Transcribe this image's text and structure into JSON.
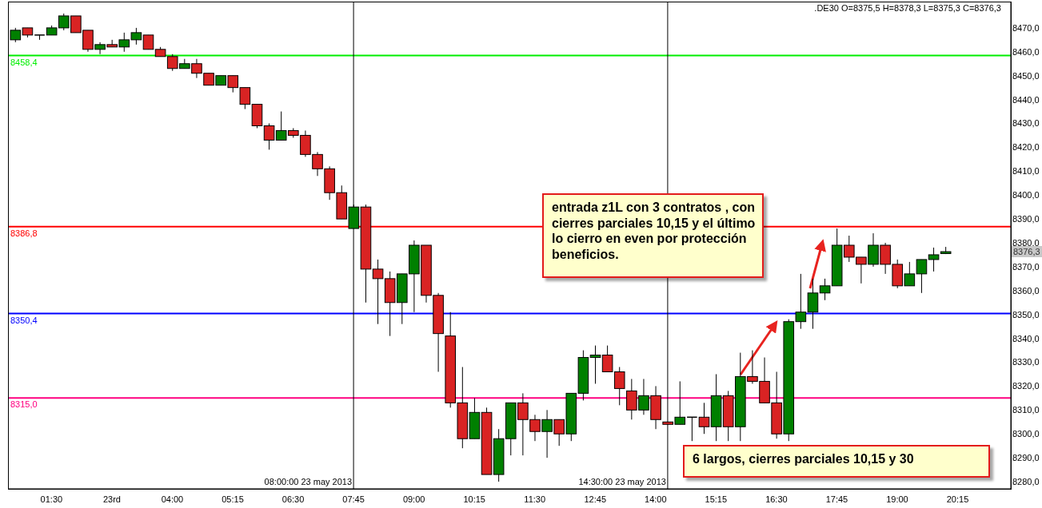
{
  "chart_data": {
    "type": "candlestick",
    "title": ".DE30 O=8375,5 H=8378,3 L=8375,3 C=8376,3",
    "x": [
      "2013-05-23T00:45",
      "2013-05-23T01:00",
      "2013-05-23T01:15",
      "2013-05-23T01:30",
      "2013-05-23T01:45",
      "2013-05-23T02:00",
      "2013-05-23T02:15",
      "2013-05-23T02:30",
      "2013-05-23T02:45",
      "2013-05-23T03:00",
      "2013-05-23T03:15",
      "2013-05-23T03:30",
      "2013-05-23T03:45",
      "2013-05-23T04:00",
      "2013-05-23T04:15",
      "2013-05-23T04:30",
      "2013-05-23T04:45",
      "2013-05-23T05:00",
      "2013-05-23T05:15",
      "2013-05-23T05:30",
      "2013-05-23T05:45",
      "2013-05-23T06:00",
      "2013-05-23T06:15",
      "2013-05-23T06:30",
      "2013-05-23T06:45",
      "2013-05-23T07:00",
      "2013-05-23T07:15",
      "2013-05-23T07:30",
      "2013-05-23T07:45",
      "2013-05-23T08:00",
      "2013-05-23T08:15",
      "2013-05-23T08:30",
      "2013-05-23T08:45",
      "2013-05-23T09:00",
      "2013-05-23T09:15",
      "2013-05-23T09:30",
      "2013-05-23T09:45",
      "2013-05-23T10:00",
      "2013-05-23T10:15",
      "2013-05-23T10:30",
      "2013-05-23T10:45",
      "2013-05-23T11:00",
      "2013-05-23T11:15",
      "2013-05-23T11:30",
      "2013-05-23T11:45",
      "2013-05-23T12:00",
      "2013-05-23T12:15",
      "2013-05-23T12:30",
      "2013-05-23T12:45",
      "2013-05-23T13:00",
      "2013-05-23T13:15",
      "2013-05-23T13:30",
      "2013-05-23T13:45",
      "2013-05-23T14:00",
      "2013-05-23T14:15",
      "2013-05-23T14:30",
      "2013-05-23T14:45",
      "2013-05-23T15:00",
      "2013-05-23T15:15",
      "2013-05-23T15:30",
      "2013-05-23T15:45",
      "2013-05-23T16:00",
      "2013-05-23T16:15",
      "2013-05-23T16:30",
      "2013-05-23T16:45",
      "2013-05-23T17:00",
      "2013-05-23T17:15",
      "2013-05-23T17:30",
      "2013-05-23T17:45",
      "2013-05-23T18:00",
      "2013-05-23T18:15",
      "2013-05-23T18:30",
      "2013-05-23T18:45",
      "2013-05-23T19:00",
      "2013-05-23T19:15",
      "2013-05-23T19:30",
      "2013-05-23T19:45",
      "2013-05-23T20:00"
    ],
    "ohlc": [
      [
        8465,
        8470,
        8464,
        8469
      ],
      [
        8470,
        8470,
        8466,
        8467
      ],
      [
        8467,
        8467,
        8465,
        8467
      ],
      [
        8467,
        8471,
        8467,
        8470
      ],
      [
        8470,
        8476,
        8469,
        8475
      ],
      [
        8475,
        8475,
        8468,
        8468
      ],
      [
        8469,
        8469,
        8460,
        8461
      ],
      [
        8461,
        8464,
        8459,
        8463
      ],
      [
        8463,
        8465,
        8462,
        8462
      ],
      [
        8462,
        8468,
        8460,
        8465
      ],
      [
        8465,
        8470,
        8463,
        8468
      ],
      [
        8467,
        8467,
        8461,
        8461
      ],
      [
        8461,
        8462,
        8458,
        8458
      ],
      [
        8458,
        8459,
        8452,
        8453
      ],
      [
        8453,
        8457,
        8453,
        8455
      ],
      [
        8455,
        8457,
        8449,
        8451
      ],
      [
        8451,
        8451,
        8446,
        8446
      ],
      [
        8446,
        8450,
        8446,
        8450
      ],
      [
        8450,
        8450,
        8443,
        8445
      ],
      [
        8445,
        8445,
        8436,
        8438
      ],
      [
        8438,
        8438,
        8428,
        8429
      ],
      [
        8429,
        8430,
        8419,
        8423
      ],
      [
        8423,
        8435,
        8423,
        8427
      ],
      [
        8427,
        8428,
        8424,
        8425
      ],
      [
        8425,
        8427,
        8416,
        8417
      ],
      [
        8417,
        8418,
        8408,
        8411
      ],
      [
        8411,
        8412,
        8398,
        8401
      ],
      [
        8401,
        8404,
        8390,
        8390
      ],
      [
        8386,
        8396,
        8386,
        8395
      ],
      [
        8395,
        8396,
        8355,
        8369
      ],
      [
        8369,
        8373,
        8346,
        8365
      ],
      [
        8365,
        8368,
        8341,
        8355
      ],
      [
        8355,
        8367,
        8346,
        8367
      ],
      [
        8367,
        8381,
        8351,
        8379
      ],
      [
        8379,
        8379,
        8355,
        8358
      ],
      [
        8358,
        8359,
        8326,
        8342
      ],
      [
        8341,
        8351,
        8311,
        8313
      ],
      [
        8313,
        8328,
        8294,
        8298
      ],
      [
        8298,
        8315,
        8298,
        8309
      ],
      [
        8309,
        8311,
        8283,
        8283
      ],
      [
        8283,
        8302,
        8280,
        8298
      ],
      [
        8298,
        8313,
        8291,
        8313
      ],
      [
        8313,
        8317,
        8291,
        8306
      ],
      [
        8306,
        8308,
        8297,
        8301
      ],
      [
        8301,
        8310,
        8290,
        8306
      ],
      [
        8306,
        8306,
        8295,
        8300
      ],
      [
        8300,
        8317,
        8297,
        8317
      ],
      [
        8317,
        8335,
        8314,
        8332
      ],
      [
        8332,
        8337,
        8321,
        8333
      ],
      [
        8333,
        8337,
        8326,
        8326
      ],
      [
        8326,
        8328,
        8312,
        8319
      ],
      [
        8318,
        8323,
        8306,
        8310
      ],
      [
        8310,
        8323,
        8308,
        8316
      ],
      [
        8316,
        8320,
        8302,
        8306
      ],
      [
        8305,
        8305,
        8304,
        8304
      ],
      [
        8304,
        8322,
        8304,
        8307
      ],
      [
        8307,
        8307,
        8297,
        8307
      ],
      [
        8307,
        8313,
        8300,
        8303
      ],
      [
        8303,
        8325,
        8297,
        8316
      ],
      [
        8316,
        8318,
        8297,
        8303
      ],
      [
        8303,
        8334,
        8297,
        8324
      ],
      [
        8324,
        8335,
        8321,
        8322
      ],
      [
        8322,
        8332,
        8313,
        8313
      ],
      [
        8313,
        8326,
        8298,
        8300
      ],
      [
        8300,
        8348,
        8297,
        8347
      ],
      [
        8347,
        8367,
        8344,
        8351
      ],
      [
        8351,
        8365,
        8344,
        8359
      ],
      [
        8359,
        8365,
        8356,
        8362
      ],
      [
        8362,
        8386,
        8362,
        8379
      ],
      [
        8379,
        8383,
        8372,
        8374
      ],
      [
        8374,
        8374,
        8363,
        8371
      ],
      [
        8371,
        8384,
        8370,
        8379
      ],
      [
        8379,
        8380,
        8367,
        8371
      ],
      [
        8371,
        8373,
        8361,
        8362
      ],
      [
        8362,
        8372,
        8362,
        8367
      ],
      [
        8367,
        8373,
        8359,
        8373
      ],
      [
        8373,
        8378,
        8368,
        8375
      ],
      [
        8375.5,
        8378.3,
        8375.3,
        8376.3
      ]
    ],
    "colors": [
      "#008000",
      "#d92323",
      "#000000",
      "#008000",
      "#008000",
      "#d92323",
      "#d92323",
      "#008000",
      "#d92323",
      "#008000",
      "#008000",
      "#d92323",
      "#d92323",
      "#d92323",
      "#008000",
      "#d92323",
      "#d92323",
      "#008000",
      "#d92323",
      "#d92323",
      "#d92323",
      "#d92323",
      "#008000",
      "#d92323",
      "#d92323",
      "#d92323",
      "#d92323",
      "#d92323",
      "#008000",
      "#d92323",
      "#d92323",
      "#d92323",
      "#008000",
      "#008000",
      "#d92323",
      "#d92323",
      "#d92323",
      "#d92323",
      "#008000",
      "#d92323",
      "#008000",
      "#008000",
      "#d92323",
      "#d92323",
      "#008000",
      "#d92323",
      "#008000",
      "#008000",
      "#008000",
      "#d92323",
      "#d92323",
      "#d92323",
      "#008000",
      "#d92323",
      "#d92323",
      "#008000",
      "#000000",
      "#d92323",
      "#008000",
      "#d92323",
      "#008000",
      "#d92323",
      "#d92323",
      "#d92323",
      "#008000",
      "#008000",
      "#008000",
      "#008000",
      "#008000",
      "#d92323",
      "#d92323",
      "#008000",
      "#d92323",
      "#d92323",
      "#008000",
      "#008000",
      "#008000",
      "#008000"
    ],
    "xlim": [
      "2013-05-23T00:36",
      "2013-05-23T21:21"
    ],
    "xticks": [
      {
        "value": "2013-05-23T01:30",
        "label": "01:30"
      },
      {
        "value": "2013-05-23T02:45",
        "label": "23rd"
      },
      {
        "value": "2013-05-23T04:00",
        "label": "04:00"
      },
      {
        "value": "2013-05-23T05:15",
        "label": "05:15"
      },
      {
        "value": "2013-05-23T06:30",
        "label": "06:30"
      },
      {
        "value": "2013-05-23T07:45",
        "label": "07:45"
      },
      {
        "value": "2013-05-23T09:00",
        "label": "09:00"
      },
      {
        "value": "2013-05-23T10:15",
        "label": "10:15"
      },
      {
        "value": "2013-05-23T11:30",
        "label": "11:30"
      },
      {
        "value": "2013-05-23T12:45",
        "label": "12:45"
      },
      {
        "value": "2013-05-23T14:00",
        "label": "14:00"
      },
      {
        "value": "2013-05-23T15:15",
        "label": "15:15"
      },
      {
        "value": "2013-05-23T16:30",
        "label": "16:30"
      },
      {
        "value": "2013-05-23T17:45",
        "label": "17:45"
      },
      {
        "value": "2013-05-23T19:00",
        "label": "19:00"
      },
      {
        "value": "2013-05-23T20:15",
        "label": "20:15"
      }
    ],
    "ylim": [
      8277,
      8481
    ],
    "yticks": [
      {
        "value": 8280,
        "label": "8280,0"
      },
      {
        "value": 8290,
        "label": "8290,0"
      },
      {
        "value": 8300,
        "label": "8300,0"
      },
      {
        "value": 8310,
        "label": "8310,0"
      },
      {
        "value": 8320,
        "label": "8320,0"
      },
      {
        "value": 8330,
        "label": "8330,0"
      },
      {
        "value": 8340,
        "label": "8340,0"
      },
      {
        "value": 8350,
        "label": "8350,0"
      },
      {
        "value": 8360,
        "label": "8360,0"
      },
      {
        "value": 8370,
        "label": "8370,0"
      },
      {
        "value": 8380,
        "label": "8380,0"
      },
      {
        "value": 8390,
        "label": "8390,0"
      },
      {
        "value": 8400,
        "label": "8400,0"
      },
      {
        "value": 8410,
        "label": "8410,0"
      },
      {
        "value": 8420,
        "label": "8420,0"
      },
      {
        "value": 8430,
        "label": "8430,0"
      },
      {
        "value": 8440,
        "label": "8440,0"
      },
      {
        "value": 8450,
        "label": "8450,0"
      },
      {
        "value": 8460,
        "label": "8460,0"
      },
      {
        "value": 8470,
        "label": "8470,0"
      }
    ],
    "ref_lines": [
      {
        "axis": "y",
        "value": 8458.4,
        "label": "8458,4",
        "color": "#00ee00"
      },
      {
        "axis": "y",
        "value": 8386.8,
        "label": "8386,8",
        "color": "#ff0000"
      },
      {
        "axis": "y",
        "value": 8350.4,
        "label": "8350,4",
        "color": "#0000ff"
      },
      {
        "axis": "y",
        "value": 8315.0,
        "label": "8315,0",
        "color": "#ff0080"
      },
      {
        "axis": "x",
        "value": "2013-05-23T07:45",
        "label": "08:00:00 23 may 2013",
        "color": "#000000"
      },
      {
        "axis": "x",
        "value": "2013-05-23T14:15",
        "label": "14:30:00 23 may 2013",
        "color": "#000000"
      }
    ],
    "annotations": [
      "entrada z1L con 3 contratos , con cierres parciales 10,15 y el último lo cierro en even por protección beneficios.",
      "6 largos, cierres parciales 10,15 y 30",
      {
        "text": "8376,3",
        "y": 8376.3
      }
    ]
  }
}
